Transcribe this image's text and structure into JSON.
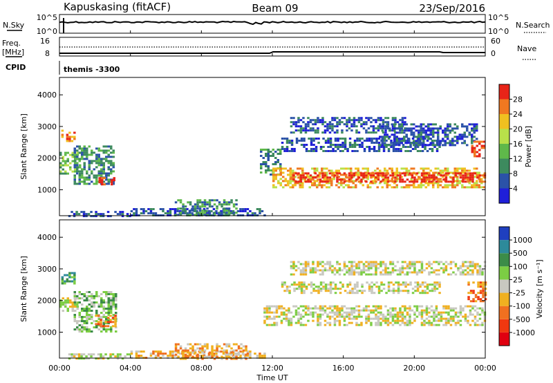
{
  "header": {
    "site": "Kapuskasing (fitACF)",
    "beam": "Beam 09",
    "date": "23/Sep/2016"
  },
  "strip_labels": {
    "nsky": "N.Sky",
    "nsky_ticks": [
      "10^5",
      "10^0"
    ],
    "nsearch": "N.Search",
    "nsearch_ticks": [
      "10^5",
      "10^0"
    ],
    "freq_line1": "Freq.",
    "freq_line2": "[MHz]",
    "freq_ticks": [
      "16",
      "8"
    ],
    "nave": "Nave",
    "nave_ticks": [
      "60",
      "0"
    ],
    "cpid": "CPID",
    "cpid_value": "themis -3300"
  },
  "x_axis": {
    "label": "Time UT",
    "ticks": [
      "00:00",
      "04:00",
      "08:00",
      "12:00",
      "16:00",
      "20:00",
      "00:00"
    ],
    "range_hours": [
      0,
      24
    ]
  },
  "colors": {
    "power": [
      "#1f1fd8",
      "#2b52a8",
      "#3d8a5e",
      "#5fb84a",
      "#b8e04a",
      "#f0c020",
      "#f07820",
      "#e82418"
    ],
    "velocity": [
      "#1f3fbf",
      "#2d8a9a",
      "#3c8c48",
      "#7ccd44",
      "#c8c8c0",
      "#f0b020",
      "#f07020",
      "#f03810",
      "#e00010"
    ]
  },
  "chart_data": [
    {
      "type": "heatmap",
      "name": "power",
      "ylabel": "Slant Range [km]",
      "yticks": [
        "1000",
        "2000",
        "3000",
        "4000"
      ],
      "ylim": [
        180,
        4550
      ],
      "colorbar": {
        "label": "Power [dB]",
        "ticks": [
          "4",
          "8",
          "12",
          "16",
          "20",
          "24",
          "28"
        ],
        "range": [
          0,
          32
        ]
      },
      "regions": [
        {
          "t": [
            0.0,
            1.2
          ],
          "r": [
            1500,
            2200
          ],
          "level": 3
        },
        {
          "t": [
            0.1,
            0.9
          ],
          "r": [
            2550,
            2900
          ],
          "level": 6
        },
        {
          "t": [
            0.8,
            3.0
          ],
          "r": [
            1200,
            2400
          ],
          "level": 2
        },
        {
          "t": [
            2.2,
            3.1
          ],
          "r": [
            1150,
            1400
          ],
          "level": 7
        },
        {
          "t": [
            0.5,
            4.0
          ],
          "r": [
            180,
            330
          ],
          "level": 1
        },
        {
          "t": [
            4.0,
            11.5
          ],
          "r": [
            180,
            420
          ],
          "level": 1
        },
        {
          "t": [
            6.5,
            10.0
          ],
          "r": [
            180,
            700
          ],
          "level": 2
        },
        {
          "t": [
            11.3,
            12.5
          ],
          "r": [
            1500,
            2300
          ],
          "level": 2
        },
        {
          "t": [
            12.0,
            24.0
          ],
          "r": [
            1100,
            1700
          ],
          "level": 5
        },
        {
          "t": [
            13.0,
            24.0
          ],
          "r": [
            1250,
            1550
          ],
          "level": 7
        },
        {
          "t": [
            12.5,
            21.5
          ],
          "r": [
            2200,
            2650
          ],
          "level": 1
        },
        {
          "t": [
            13.0,
            19.5
          ],
          "r": [
            2800,
            3300
          ],
          "level": 1
        },
        {
          "t": [
            18.0,
            23.5
          ],
          "r": [
            2400,
            3100
          ],
          "level": 1
        },
        {
          "t": [
            23.2,
            24.0
          ],
          "r": [
            2050,
            2550
          ],
          "level": 7
        }
      ]
    },
    {
      "type": "heatmap",
      "name": "velocity",
      "ylabel": "Slant Range [km]",
      "yticks": [
        "1000",
        "2000",
        "3000",
        "4000"
      ],
      "ylim": [
        180,
        4550
      ],
      "colorbar": {
        "label": "Velocity [m s⁻¹]",
        "ticks": [
          "1000",
          "500",
          "100",
          "25",
          "-25",
          "-100",
          "-500",
          "-1000"
        ]
      },
      "regions": [
        {
          "t": [
            0.0,
            1.0
          ],
          "r": [
            1700,
            2100
          ],
          "level": 4
        },
        {
          "t": [
            0.1,
            0.8
          ],
          "r": [
            2550,
            2900
          ],
          "level": 2
        },
        {
          "t": [
            0.8,
            3.2
          ],
          "r": [
            1000,
            2300
          ],
          "level": 3
        },
        {
          "t": [
            2.0,
            3.2
          ],
          "r": [
            1200,
            1550
          ],
          "level": 6
        },
        {
          "t": [
            0.5,
            4.0
          ],
          "r": [
            180,
            330
          ],
          "level": 4
        },
        {
          "t": [
            4.0,
            11.5
          ],
          "r": [
            180,
            420
          ],
          "level": 5
        },
        {
          "t": [
            6.5,
            10.5
          ],
          "r": [
            180,
            650
          ],
          "level": 5
        },
        {
          "t": [
            11.5,
            24.0
          ],
          "r": [
            1250,
            1850
          ],
          "level": 4
        },
        {
          "t": [
            12.5,
            21.5
          ],
          "r": [
            2250,
            2600
          ],
          "level": 4
        },
        {
          "t": [
            13.0,
            24.0
          ],
          "r": [
            2800,
            3250
          ],
          "level": 4
        },
        {
          "t": [
            23.0,
            24.0
          ],
          "r": [
            2000,
            2600
          ],
          "level": 6
        }
      ]
    }
  ]
}
